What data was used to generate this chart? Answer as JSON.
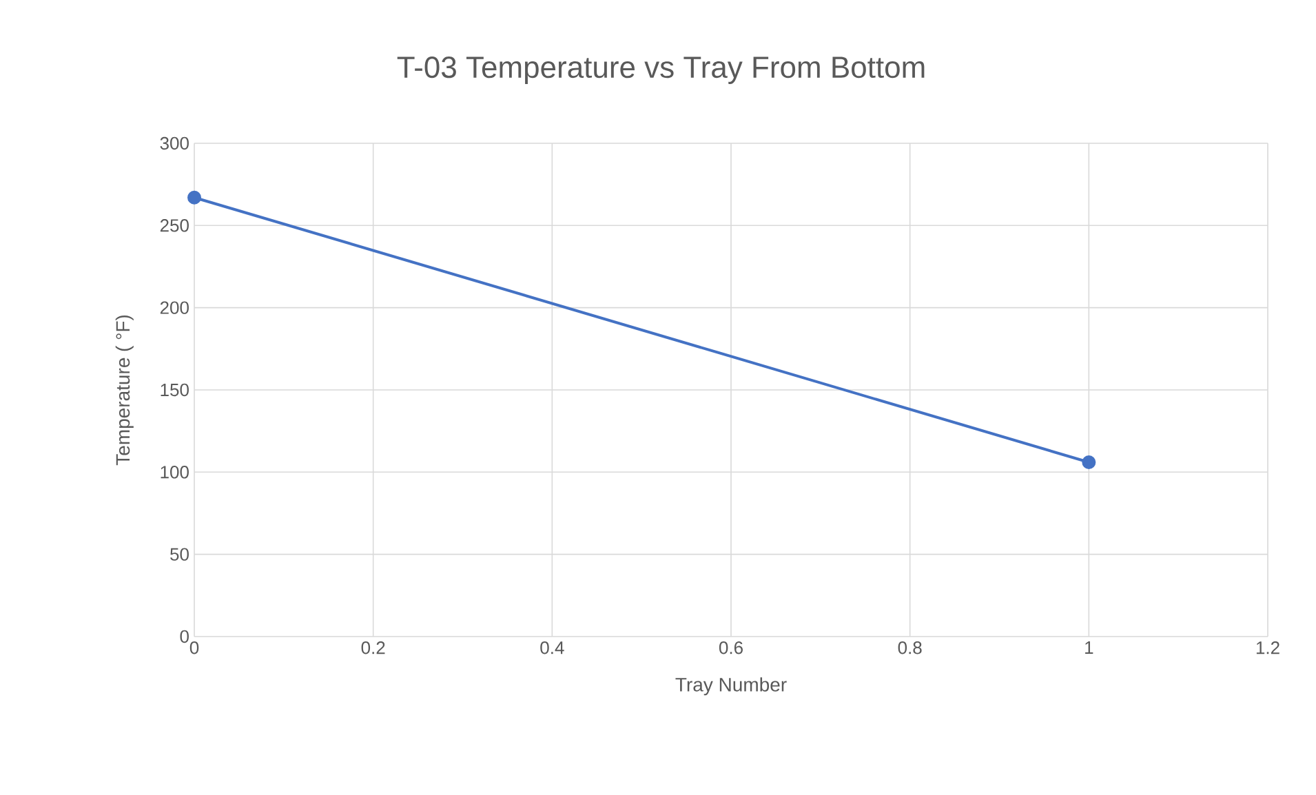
{
  "chart_data": {
    "type": "line",
    "title": "T-03 Temperature vs Tray From Bottom",
    "xlabel": "Tray Number",
    "ylabel": "Temperature ( °F)",
    "x": [
      0,
      1
    ],
    "series": [
      {
        "color": "#4472c4",
        "values": [
          267,
          106
        ]
      }
    ],
    "xlim": [
      0,
      1.2
    ],
    "xticks": [
      0,
      0.2,
      0.4,
      0.6,
      0.8,
      1,
      1.2
    ],
    "ylim": [
      0,
      300
    ],
    "yticks": [
      0,
      50,
      100,
      150,
      200,
      250,
      300
    ],
    "grid": true,
    "marker": "circle",
    "line_style": "solid"
  }
}
